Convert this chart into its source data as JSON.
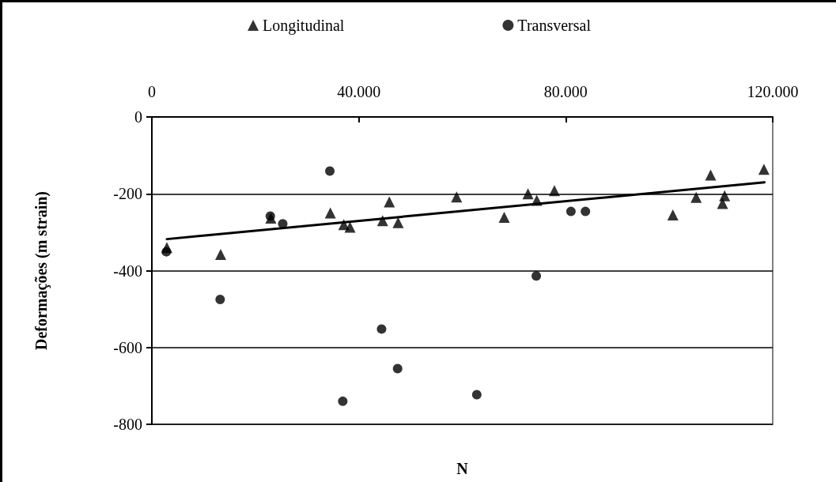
{
  "chart_data": {
    "type": "scatter",
    "xlabel": "N",
    "ylabel": "Deformações (m strain)",
    "xlim": [
      0,
      120000
    ],
    "xticks": [
      0,
      {
        "value": 40000,
        "label": "40.000"
      },
      {
        "value": 80000,
        "label": "80.000"
      },
      {
        "value": 120000,
        "label": "120.000"
      }
    ],
    "ylim": [
      -800,
      0
    ],
    "yticks": [
      -800,
      -600,
      -400,
      -200,
      0
    ],
    "grid": "y",
    "legend": "top",
    "series": [
      {
        "name": "Longitudinal",
        "color": "#000000",
        "marker": "triangle",
        "x": [
          2900,
          13300,
          23000,
          34500,
          37100,
          38300,
          44600,
          45900,
          47600,
          58900,
          68100,
          72700,
          74400,
          77800,
          100700,
          105200,
          108000,
          110700,
          110300,
          118300
        ],
        "values": [
          -340,
          -358,
          -263,
          -250,
          -280,
          -287,
          -270,
          -221,
          -275,
          -208,
          -261,
          -200,
          -217,
          -192,
          -255,
          -209,
          -151,
          -205,
          -225,
          -136
        ]
      },
      {
        "name": "Transversal",
        "color": "#000000",
        "marker": "circle",
        "x": [
          2800,
          13200,
          22900,
          25300,
          34400,
          44400,
          47500,
          36900,
          74300,
          81000,
          83800,
          62800
        ],
        "values": [
          -351,
          -475,
          -258,
          -278,
          -141,
          -552,
          -655,
          -740,
          -414,
          -246,
          -246,
          -723
        ]
      },
      {
        "type": "line",
        "color": "#000000",
        "marker": "none",
        "line_style": "solid",
        "x": [
          2900,
          118400
        ],
        "values": [
          -318,
          -170
        ]
      }
    ]
  }
}
